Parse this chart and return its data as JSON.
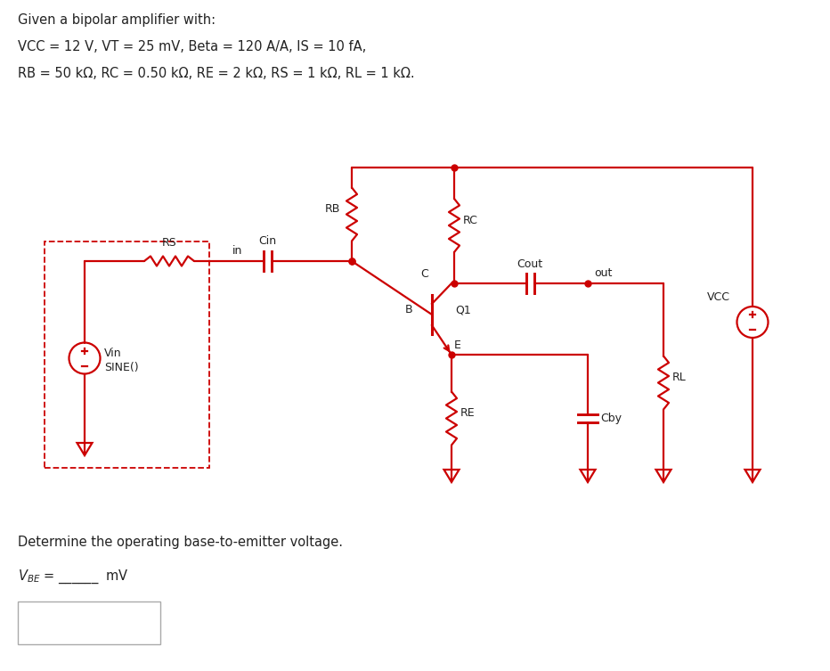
{
  "title_lines": [
    "Given a bipolar amplifier with:",
    "VCC = 12 V, VT = 25 mV, Beta = 120 A/A, IS = 10 fA,",
    "RB = 50 kΩ, RC = 0.50 kΩ, RE = 2 kΩ, RS = 1 kΩ, RL = 1 kΩ."
  ],
  "bottom_text": "Determine the operating base-to-emitter voltage.",
  "circuit_color": "#cc0000",
  "text_color": "#222222",
  "bg_color": "#ffffff",
  "dashed_color": "#cc0000",
  "fs_circuit": 9.0,
  "fs_text": 10.5
}
